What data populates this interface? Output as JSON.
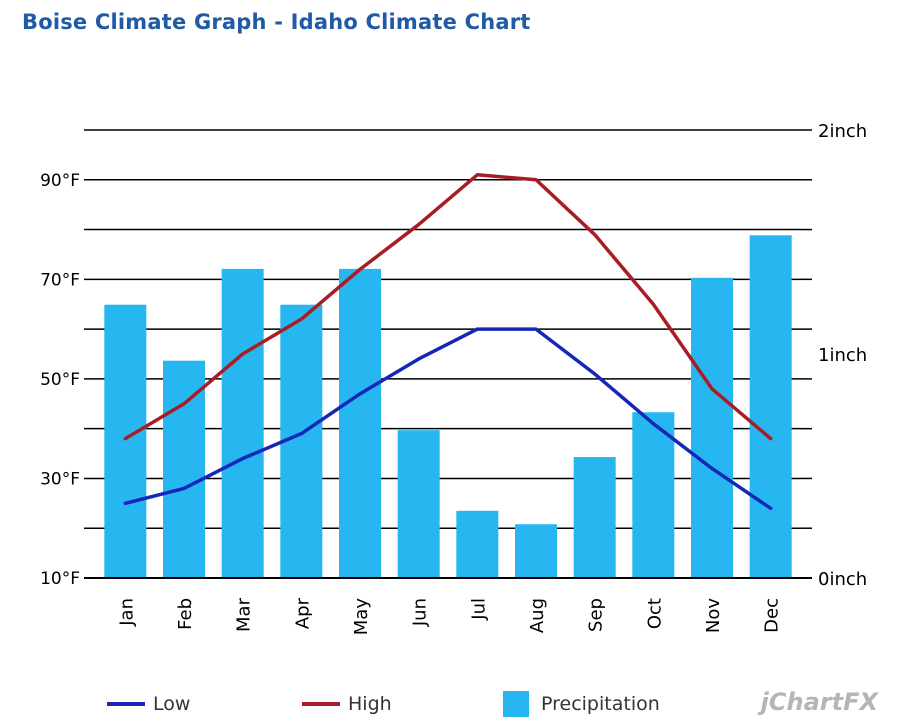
{
  "title": "Boise Climate Graph - Idaho Climate Chart",
  "brand": "jChartFX",
  "colors": {
    "low": "#1527b8",
    "high": "#aa1c24",
    "precipitation": "#26b7f0"
  },
  "legend": {
    "low": "Low",
    "high": "High",
    "precipitation": "Precipitation"
  },
  "chart_data": {
    "type": "bar",
    "categories": [
      "Jan",
      "Feb",
      "Mar",
      "Apr",
      "May",
      "Jun",
      "Jul",
      "Aug",
      "Sep",
      "Oct",
      "Nov",
      "Dec"
    ],
    "series": [
      {
        "name": "Precipitation",
        "type": "bar",
        "axis": "right",
        "values": [
          1.22,
          0.97,
          1.38,
          1.22,
          1.38,
          0.66,
          0.3,
          0.24,
          0.54,
          0.74,
          1.34,
          1.53
        ]
      },
      {
        "name": "Low",
        "type": "line",
        "axis": "left",
        "values": [
          25,
          28,
          34,
          39,
          47,
          54,
          60,
          60,
          51,
          41,
          32,
          24
        ]
      },
      {
        "name": "High",
        "type": "line",
        "axis": "left",
        "values": [
          38,
          45,
          55,
          62,
          72,
          81,
          91,
          90,
          79,
          65,
          48,
          38
        ]
      }
    ],
    "y_left": {
      "ylim": [
        10,
        100
      ],
      "ticks": [
        "10°F",
        "30°F",
        "50°F",
        "70°F",
        "90°F"
      ],
      "tick_values": [
        10,
        30,
        50,
        70,
        90
      ]
    },
    "y_right": {
      "ylim": [
        0,
        2
      ],
      "ticks": [
        "0inch",
        "1inch",
        "2inch"
      ],
      "tick_values": [
        0,
        1,
        2
      ]
    },
    "grid": true,
    "legend_position": "bottom"
  }
}
